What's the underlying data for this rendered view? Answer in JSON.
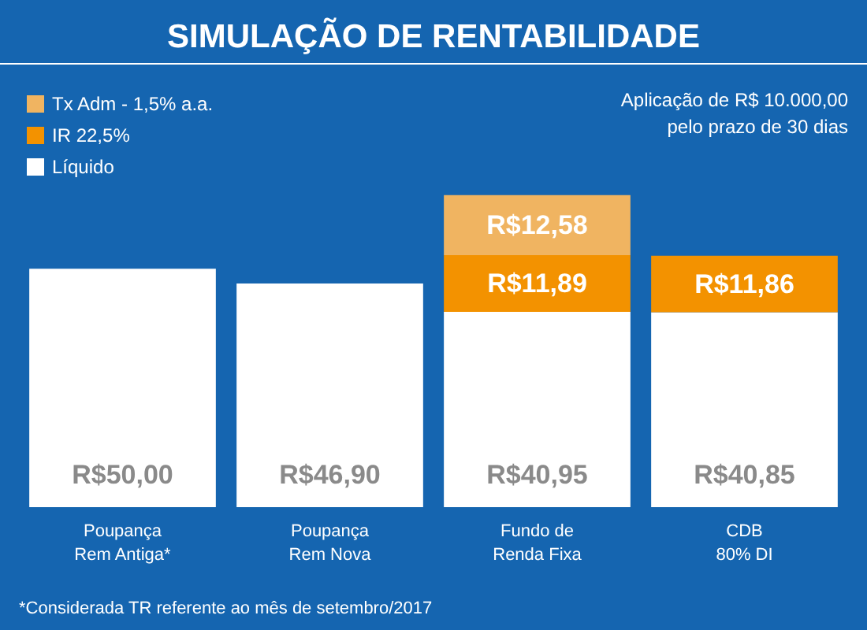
{
  "chart_data": {
    "type": "bar",
    "title": "SIMULAÇÃO DE RENTABILIDADE",
    "stacked": true,
    "legend": "top left",
    "data_labels": true,
    "categories": [
      "Poupança\nRem Antiga*",
      "Poupança\nRem Nova",
      "Fundo de\nRenda Fixa",
      "CDB\n80% DI"
    ],
    "series": [
      {
        "name": "Líquido",
        "color": "#ffffff",
        "values": [
          50.0,
          46.9,
          40.95,
          40.85
        ],
        "value_labels": [
          "R$50,00",
          "R$46,90",
          "R$40,95",
          "R$40,85"
        ]
      },
      {
        "name": "IR 22,5%",
        "color": "#f39200",
        "values": [
          null,
          null,
          11.89,
          11.86
        ],
        "value_labels": [
          null,
          null,
          "R$11,89",
          "R$11,86"
        ]
      },
      {
        "name": "Tx Adm - 1,5% a.a.",
        "color": "#f0b461",
        "values": [
          null,
          null,
          12.58,
          null
        ],
        "value_labels": [
          null,
          null,
          "R$12,58",
          null
        ]
      }
    ],
    "annotations": [
      "Aplicação de R$ 10.000,00\npelo prazo de 30 dias",
      "*Considerada TR referente ao mês de setembro/2017"
    ]
  }
}
